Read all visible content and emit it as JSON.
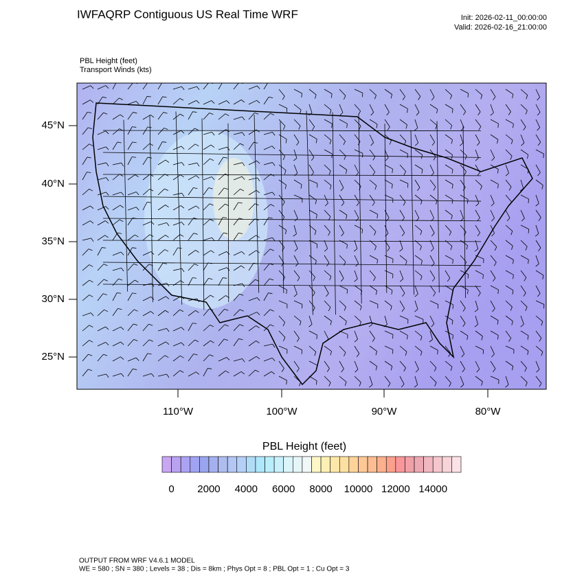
{
  "header": {
    "title": "IWFAQRP Contiguous US Real Time WRF",
    "init": "Init: 2026-02-11_00:00:00",
    "valid": "Valid: 2026-02-16_21:00:00",
    "fields": [
      "PBL Height   (feet)",
      "Transport Winds   (kts)"
    ]
  },
  "map": {
    "lat_labels": [
      "45°N",
      "40°N",
      "35°N",
      "30°N",
      "25°N"
    ],
    "lon_labels": [
      "110°W",
      "100°W",
      "90°W",
      "80°W"
    ]
  },
  "colorbar": {
    "title": "PBL Height  (feet)",
    "colors": [
      "#c9a6f2",
      "#b9a2f0",
      "#aba3f2",
      "#a0a3f3",
      "#9aa5f0",
      "#a5b0ee",
      "#aebcf0",
      "#b3c6f4",
      "#b4d0f6",
      "#b0dcf8",
      "#aee6fa",
      "#b9eefb",
      "#c9f1fb",
      "#dbf5fb",
      "#e6f5f8",
      "#f2f7f7",
      "#fdf7c8",
      "#fdf0b4",
      "#fde8a9",
      "#fde0a0",
      "#fdd39a",
      "#fdc896",
      "#fdbd92",
      "#fbb08e",
      "#fba08d",
      "#f9969a",
      "#f1a0a8",
      "#eda9b3",
      "#f1b8c2",
      "#f5c6ce",
      "#f8d3d8",
      "#fbe2e6"
    ],
    "labels": [
      0,
      2000,
      4000,
      6000,
      8000,
      10000,
      12000,
      14000
    ]
  },
  "footer": [
    "OUTPUT FROM WRF V4.6.1 MODEL",
    "WE = 580 ; SN = 380 ; Levels = 38 ; Dis = 8km ; Phys Opt = 8 ; PBL Opt = 1 ; Cu Opt = 3"
  ]
}
